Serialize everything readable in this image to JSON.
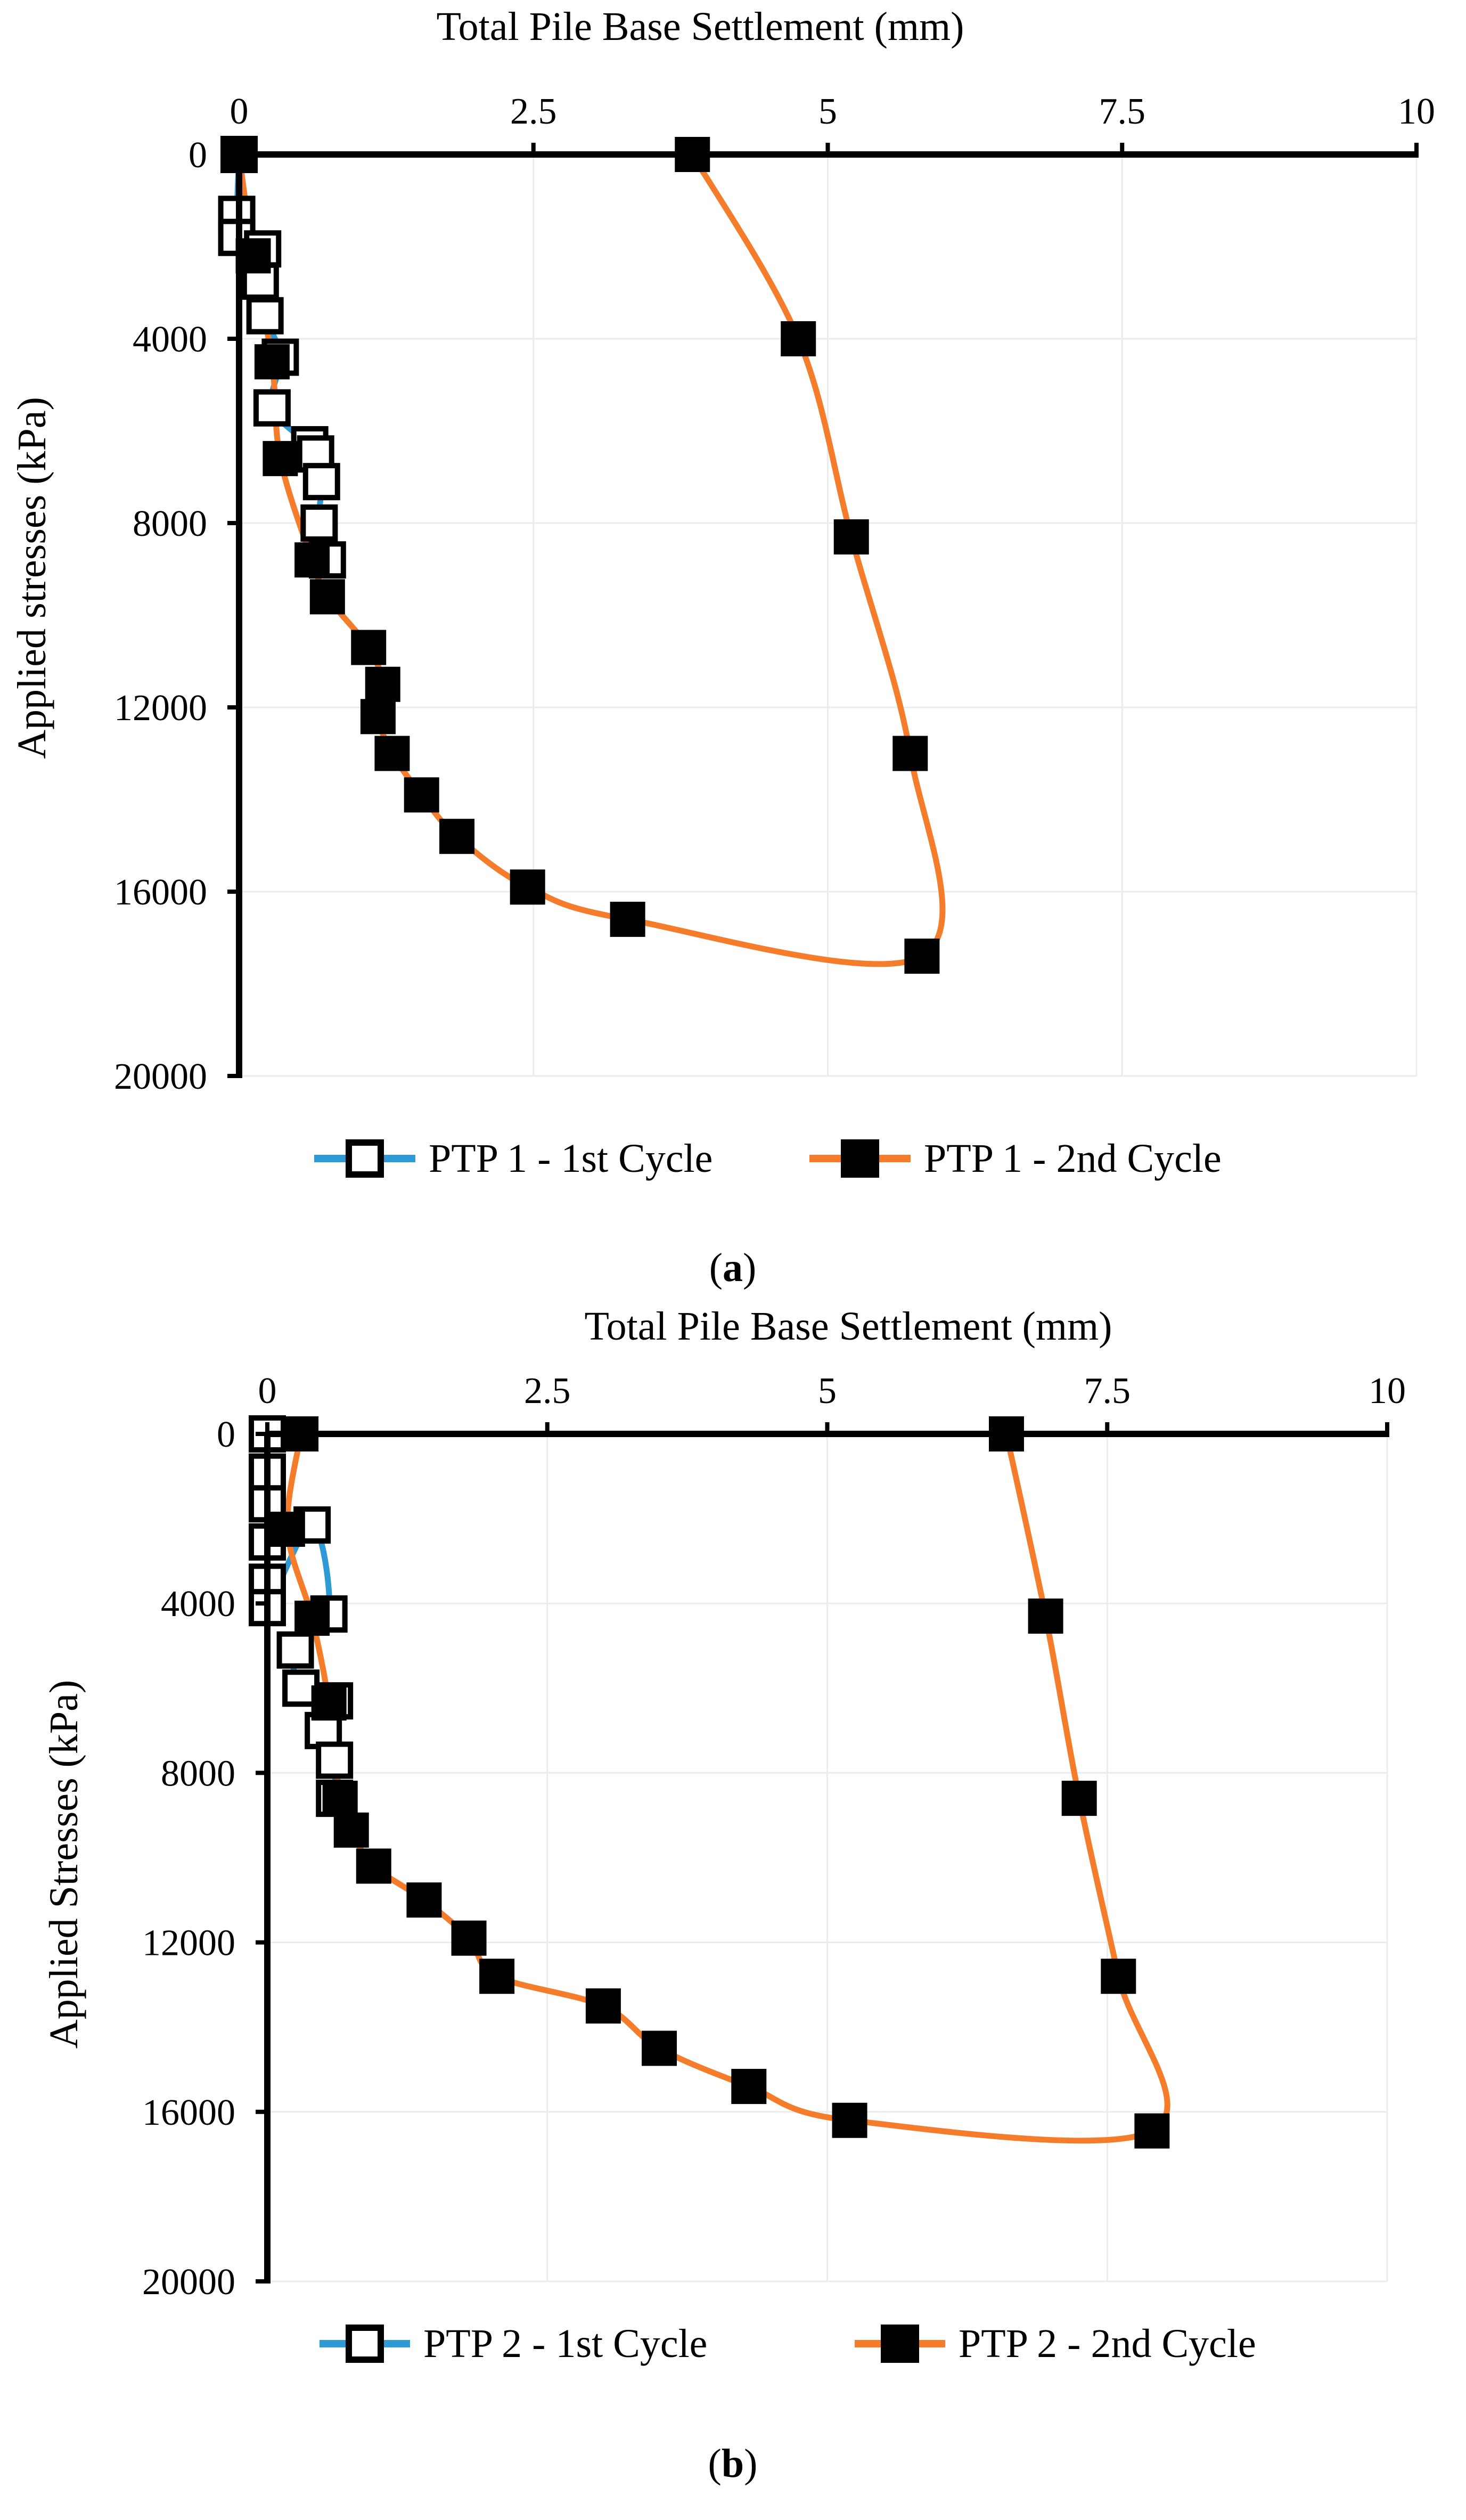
{
  "colors": {
    "first_cycle_line": "#2E9AD6",
    "second_cycle_line": "#F47C2A",
    "first_cycle_marker_fill": "#FFFFFF",
    "second_cycle_marker_fill": "#000000",
    "axis": "#000000",
    "grid": "#ECECEC"
  },
  "chart_data": [
    {
      "type": "scatter",
      "panel": "a",
      "caption": {
        "open": "(",
        "letter": "a",
        "close": ")"
      },
      "xlabel": "Total Pile Base Settlement (mm)",
      "ylabel": "Applied stresses (kPa)",
      "xlim": [
        0,
        10
      ],
      "ylim": [
        0,
        20000
      ],
      "y_reversed": true,
      "x_axis_position": "top",
      "grid": true,
      "legend_position": "bottom",
      "xticks": [
        "0",
        "2.5",
        "5",
        "7.5",
        "10"
      ],
      "xtick_values": [
        0,
        2.5,
        5,
        7.5,
        10
      ],
      "yticks": [
        "0",
        "4000",
        "8000",
        "12000",
        "16000",
        "20000"
      ],
      "ytick_values": [
        0,
        4000,
        8000,
        12000,
        16000,
        20000
      ],
      "series": [
        {
          "name": "PTP 1 - 1st Cycle",
          "marker": "open-square",
          "x": [
            0.0,
            -0.02,
            -0.02,
            0.2,
            0.18,
            0.22,
            0.35,
            0.28,
            0.6,
            0.65,
            0.7,
            0.68,
            0.75
          ],
          "y": [
            0,
            1300,
            1800,
            2050,
            2750,
            3500,
            4400,
            5500,
            6300,
            6500,
            7100,
            8000,
            8800
          ]
        },
        {
          "name": "PTP 1 - 2nd Cycle",
          "marker": "filled-square",
          "x": [
            0.0,
            0.12,
            0.28,
            0.35,
            0.62,
            0.75,
            1.1,
            1.22,
            1.18,
            1.3,
            1.55,
            1.85,
            2.45,
            3.3,
            5.8,
            5.7,
            5.2,
            4.75,
            3.85
          ],
          "y": [
            0,
            2200,
            4500,
            6600,
            8800,
            9600,
            10700,
            11500,
            12200,
            13000,
            13900,
            14800,
            15900,
            16600,
            17400,
            13000,
            8300,
            4000,
            0
          ]
        }
      ]
    },
    {
      "type": "scatter",
      "panel": "b",
      "caption": {
        "open": "(",
        "letter": "b",
        "close": ")"
      },
      "xlabel": "Total Pile Base Settlement (mm)",
      "ylabel": "Applied Stresses (kPa)",
      "xlim": [
        0,
        10
      ],
      "ylim": [
        0,
        20000
      ],
      "y_reversed": true,
      "x_axis_position": "top",
      "grid": true,
      "legend_position": "bottom",
      "xticks": [
        "0",
        "2.5",
        "5",
        "7.5",
        "10"
      ],
      "xtick_values": [
        0,
        2.5,
        5,
        7.5,
        10
      ],
      "yticks": [
        "0",
        "4000",
        "8000",
        "12000",
        "16000",
        "20000"
      ],
      "ytick_values": [
        0,
        4000,
        8000,
        12000,
        16000,
        20000
      ],
      "series": [
        {
          "name": "PTP 2 - 1st Cycle",
          "marker": "open-square",
          "x": [
            0.0,
            0.0,
            0.0,
            0.0,
            0.0,
            0.0,
            0.4,
            0.55,
            0.25,
            0.3,
            0.6,
            0.5,
            0.6,
            0.6
          ],
          "y": [
            0,
            900,
            1650,
            2550,
            3500,
            4100,
            2150,
            4250,
            5100,
            6000,
            6300,
            7000,
            7700,
            8600
          ]
        },
        {
          "name": "PTP 2 - 2nd Cycle",
          "marker": "filled-square",
          "x": [
            0.3,
            0.18,
            0.4,
            0.55,
            0.65,
            0.75,
            0.95,
            1.4,
            1.8,
            2.05,
            3.0,
            3.5,
            4.3,
            5.2,
            7.9,
            7.6,
            7.25,
            6.95,
            6.6
          ],
          "y": [
            0,
            2250,
            4350,
            6350,
            8600,
            9350,
            10200,
            11000,
            11900,
            12800,
            13500,
            14500,
            15400,
            16200,
            16450,
            12800,
            8600,
            4300,
            0
          ]
        }
      ]
    }
  ]
}
